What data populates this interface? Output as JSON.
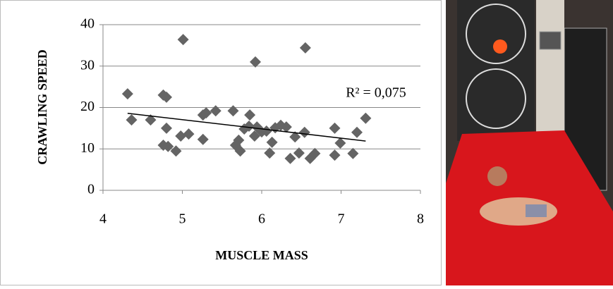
{
  "chart_data": {
    "type": "scatter",
    "x_label": "MUSCLE MASS",
    "y_label": "CRAWLING SPEED",
    "annotation": "R² = 0,075",
    "color": "#646464",
    "x": [
      4.31,
      4.36,
      4.6,
      4.76,
      4.8,
      4.76,
      4.8,
      4.82,
      4.92,
      4.98,
      5.01,
      5.08,
      5.26,
      5.26,
      5.3,
      5.42,
      5.64,
      5.67,
      5.71,
      5.73,
      5.78,
      5.84,
      5.85,
      5.91,
      5.92,
      5.94,
      6.0,
      6.06,
      6.1,
      6.13,
      6.17,
      6.24,
      6.31,
      6.36,
      6.42,
      6.47,
      6.54,
      6.55,
      6.61,
      6.67,
      6.92,
      6.92,
      6.99,
      7.15,
      7.2,
      7.31
    ],
    "y": [
      23.3,
      17.0,
      17.0,
      23.0,
      22.5,
      10.9,
      15.0,
      10.6,
      9.5,
      13.1,
      36.4,
      13.6,
      12.3,
      18.2,
      18.7,
      19.2,
      19.2,
      10.9,
      12.1,
      9.5,
      14.8,
      15.5,
      18.2,
      13.1,
      31.0,
      15.3,
      14.1,
      14.3,
      9.0,
      11.6,
      15.1,
      15.7,
      15.3,
      7.7,
      12.9,
      9.0,
      14.0,
      34.4,
      7.7,
      8.9,
      15.0,
      8.5,
      11.4,
      8.9,
      14.0,
      17.4
    ],
    "trendline": {
      "x": [
        4.31,
        7.31
      ],
      "y": [
        18.6,
        11.9
      ]
    },
    "xlim": [
      4,
      8
    ],
    "xticks": [
      4,
      5,
      6,
      7,
      8
    ],
    "ylim": [
      0,
      40
    ],
    "yticks": [
      0,
      10,
      20,
      30,
      40
    ],
    "grid": true
  }
}
